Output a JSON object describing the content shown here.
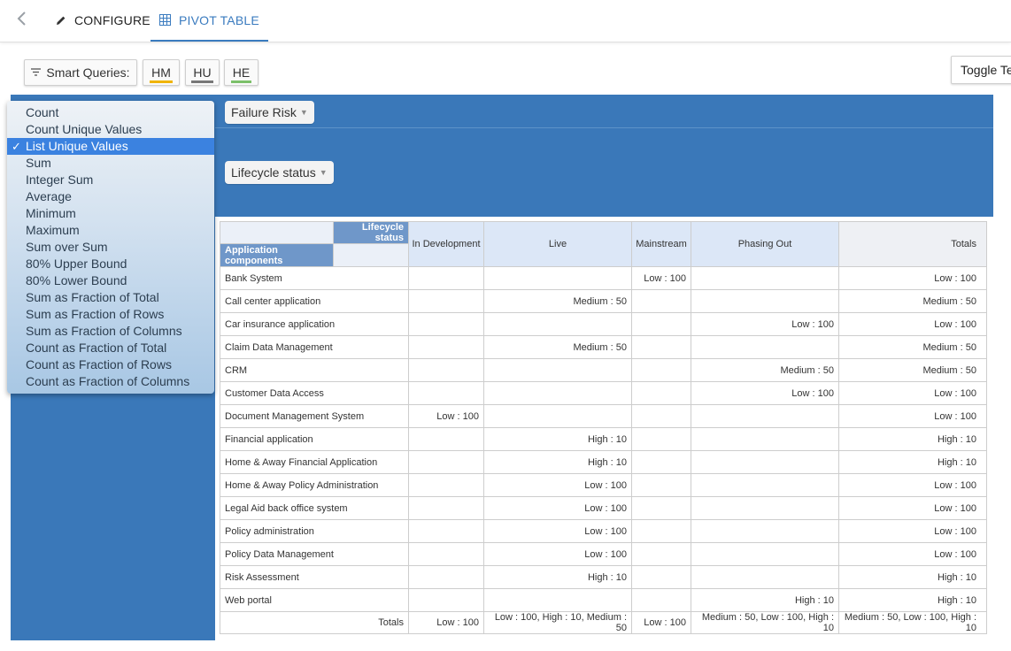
{
  "nav": {
    "back_icon": "chevron-left-icon",
    "configure_label": "CONFIGURE",
    "pivot_label": "PIVOT TABLE"
  },
  "smart_queries": {
    "label": "Smart Queries:",
    "buttons": [
      {
        "label": "HM",
        "underline_color": "#f0b400"
      },
      {
        "label": "HU",
        "underline_color": "#777777"
      },
      {
        "label": "HE",
        "underline_color": "#7cc06a"
      }
    ],
    "toggle_label": "Toggle Te"
  },
  "pills": {
    "failure_risk": "Failure Risk",
    "lifecycle_status": "Lifecycle status"
  },
  "aggregator_menu": {
    "selected": "List Unique Values",
    "items": [
      "Count",
      "Count Unique Values",
      "List Unique Values",
      "Sum",
      "Integer Sum",
      "Average",
      "Minimum",
      "Maximum",
      "Sum over Sum",
      "80% Upper Bound",
      "80% Lower Bound",
      "Sum as Fraction of Total",
      "Sum as Fraction of Rows",
      "Sum as Fraction of Columns",
      "Count as Fraction of Total",
      "Count as Fraction of Rows",
      "Count as Fraction of Columns"
    ]
  },
  "table": {
    "col_attr": "Lifecycle status",
    "row_attr": "Application components",
    "columns": [
      "In Development",
      "Live",
      "Mainstream",
      "Phasing Out"
    ],
    "totals_label": "Totals",
    "rows": [
      {
        "label": "Bank System",
        "cells": [
          "",
          "",
          "Low : 100",
          ""
        ],
        "total": "Low : 100"
      },
      {
        "label": "Call center application",
        "cells": [
          "",
          "Medium : 50",
          "",
          ""
        ],
        "total": "Medium : 50"
      },
      {
        "label": "Car insurance application",
        "cells": [
          "",
          "",
          "",
          "Low : 100"
        ],
        "total": "Low : 100"
      },
      {
        "label": "Claim Data Management",
        "cells": [
          "",
          "Medium : 50",
          "",
          ""
        ],
        "total": "Medium : 50"
      },
      {
        "label": "CRM",
        "cells": [
          "",
          "",
          "",
          "Medium : 50"
        ],
        "total": "Medium : 50"
      },
      {
        "label": "Customer Data Access",
        "cells": [
          "",
          "",
          "",
          "Low : 100"
        ],
        "total": "Low : 100"
      },
      {
        "label": "Document Management System",
        "cells": [
          "Low : 100",
          "",
          "",
          ""
        ],
        "total": "Low : 100"
      },
      {
        "label": "Financial application",
        "cells": [
          "",
          "High : 10",
          "",
          ""
        ],
        "total": "High : 10"
      },
      {
        "label": "Home & Away Financial Application",
        "cells": [
          "",
          "High : 10",
          "",
          ""
        ],
        "total": "High : 10"
      },
      {
        "label": "Home & Away Policy Administration",
        "cells": [
          "",
          "Low : 100",
          "",
          ""
        ],
        "total": "Low : 100"
      },
      {
        "label": "Legal Aid back office system",
        "cells": [
          "",
          "Low : 100",
          "",
          ""
        ],
        "total": "Low : 100"
      },
      {
        "label": "Policy administration",
        "cells": [
          "",
          "Low : 100",
          "",
          ""
        ],
        "total": "Low : 100"
      },
      {
        "label": "Policy Data Management",
        "cells": [
          "",
          "Low : 100",
          "",
          ""
        ],
        "total": "Low : 100"
      },
      {
        "label": "Risk Assessment",
        "cells": [
          "",
          "High : 10",
          "",
          ""
        ],
        "total": "High : 10"
      },
      {
        "label": "Web portal",
        "cells": [
          "",
          "",
          "",
          "High : 10"
        ],
        "total": "High : 10"
      }
    ],
    "footer": {
      "label": "Totals",
      "cells": [
        "Low : 100",
        "Low : 100, High : 10, Medium : 50",
        "Low : 100",
        "Medium : 50, Low : 100, High : 10"
      ],
      "total": "Medium : 50, Low : 100, High : 10"
    }
  }
}
